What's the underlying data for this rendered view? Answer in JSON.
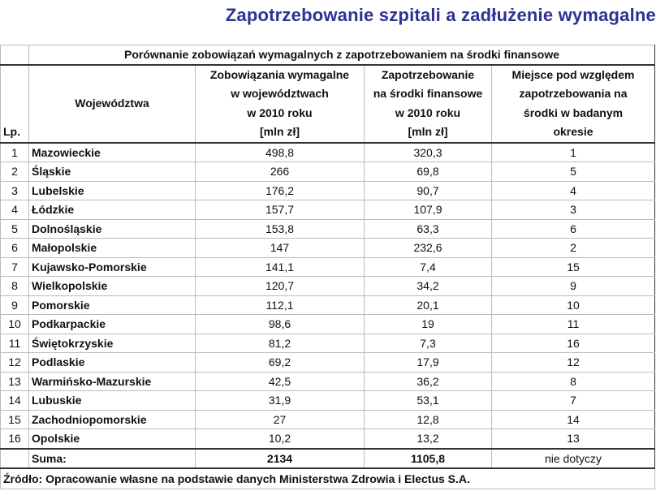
{
  "title": "Zapotrzebowanie szpitali a zadłużenie wymagalne",
  "table": {
    "caption": "Porównanie zobowiązań  wymagalnych z zapotrzebowaniem na środki finansowe",
    "headers": {
      "lp": "Lp.",
      "region": "Województwa",
      "liabilities": [
        "Zobowiązania wymagalne",
        "w województwach",
        "w 2010 roku",
        "[mln zł]"
      ],
      "demand": [
        "Zapotrzebowanie",
        "na środki finansowe",
        "w 2010 roku",
        "[mln zł]"
      ],
      "rank": [
        "Miejsce pod względem",
        "zapotrzebowania na",
        "środki w badanym",
        "okresie"
      ]
    },
    "rows": [
      {
        "lp": "1",
        "region": "Mazowieckie",
        "liabilities": "498,8",
        "demand": "320,3",
        "rank": "1"
      },
      {
        "lp": "2",
        "region": "Śląskie",
        "liabilities": "266",
        "demand": "69,8",
        "rank": "5"
      },
      {
        "lp": "3",
        "region": "Lubelskie",
        "liabilities": "176,2",
        "demand": "90,7",
        "rank": "4"
      },
      {
        "lp": "4",
        "region": "Łódzkie",
        "liabilities": "157,7",
        "demand": "107,9",
        "rank": "3"
      },
      {
        "lp": "5",
        "region": "Dolnośląskie",
        "liabilities": "153,8",
        "demand": "63,3",
        "rank": "6"
      },
      {
        "lp": "6",
        "region": "Małopolskie",
        "liabilities": "147",
        "demand": "232,6",
        "rank": "2"
      },
      {
        "lp": "7",
        "region": "Kujawsko-Pomorskie",
        "liabilities": "141,1",
        "demand": "7,4",
        "rank": "15"
      },
      {
        "lp": "8",
        "region": "Wielkopolskie",
        "liabilities": "120,7",
        "demand": "34,2",
        "rank": "9"
      },
      {
        "lp": "9",
        "region": "Pomorskie",
        "liabilities": "112,1",
        "demand": "20,1",
        "rank": "10"
      },
      {
        "lp": "10",
        "region": "Podkarpackie",
        "liabilities": "98,6",
        "demand": "19",
        "rank": "11"
      },
      {
        "lp": "11",
        "region": "Świętokrzyskie",
        "liabilities": "81,2",
        "demand": "7,3",
        "rank": "16"
      },
      {
        "lp": "12",
        "region": "Podlaskie",
        "liabilities": "69,2",
        "demand": "17,9",
        "rank": "12"
      },
      {
        "lp": "13",
        "region": "Warmińsko-Mazurskie",
        "liabilities": "42,5",
        "demand": "36,2",
        "rank": "8"
      },
      {
        "lp": "14",
        "region": "Lubuskie",
        "liabilities": "31,9",
        "demand": "53,1",
        "rank": "7"
      },
      {
        "lp": "15",
        "region": "Zachodniopomorskie",
        "liabilities": "27",
        "demand": "12,8",
        "rank": "14"
      },
      {
        "lp": "16",
        "region": "Opolskie",
        "liabilities": "10,2",
        "demand": "13,2",
        "rank": "13"
      }
    ],
    "sum": {
      "label": "Suma:",
      "liabilities": "2134",
      "demand": "1105,8",
      "rank": "nie dotyczy"
    },
    "source": "Źródło: Opracowanie własne na podstawie danych Ministerstwa Zdrowia i Electus S.A."
  },
  "colors": {
    "title": "#2e3192"
  }
}
